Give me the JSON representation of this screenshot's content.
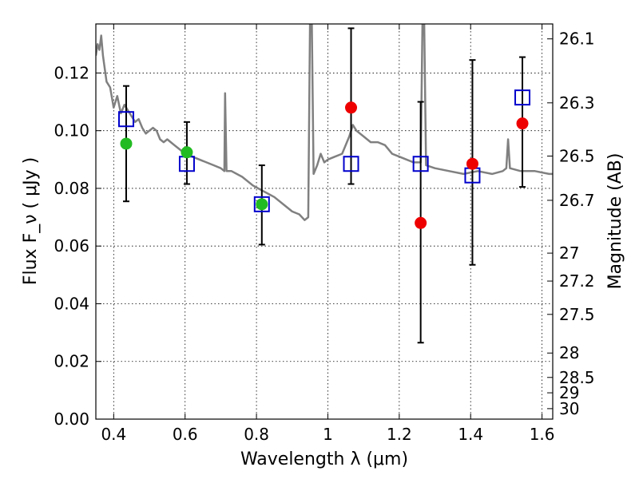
{
  "chart_data": {
    "type": "scatter",
    "xlabel": "Wavelength  λ (μm)",
    "ylabel": "Flux  F_ν  ( μJy )",
    "y2label": "Magnitude (AB)",
    "xlim": [
      0.35,
      1.63
    ],
    "ylim": [
      0.0,
      0.137
    ],
    "grid": true,
    "x_ticks": [
      0.4,
      0.6,
      0.8,
      1.0,
      1.2,
      1.4,
      1.6
    ],
    "x_tick_labels": [
      "0.4",
      "0.6",
      "0.8",
      "1",
      "1.2",
      "1.4",
      "1.6"
    ],
    "y_ticks": [
      0.0,
      0.02,
      0.04,
      0.06,
      0.08,
      0.1,
      0.12
    ],
    "y_tick_labels": [
      "0.00",
      "0.02",
      "0.04",
      "0.06",
      "0.08",
      "0.10",
      "0.12"
    ],
    "mag_ticks": [
      {
        "mag": 26.1,
        "label": "26.1"
      },
      {
        "mag": 26.3,
        "label": "26.3"
      },
      {
        "mag": 26.5,
        "label": "26.5"
      },
      {
        "mag": 26.7,
        "label": "26.7"
      },
      {
        "mag": 27.0,
        "label": "27"
      },
      {
        "mag": 27.2,
        "label": "27.2"
      },
      {
        "mag": 27.5,
        "label": "27.5"
      },
      {
        "mag": 28.0,
        "label": "28"
      },
      {
        "mag": 28.5,
        "label": "28.5"
      },
      {
        "mag": 29.0,
        "label": "29"
      },
      {
        "mag": 30.0,
        "label": "30"
      }
    ],
    "colors": {
      "spectrum": "#808080",
      "model_box": "#0000cc",
      "green_point": "#22bb22",
      "red_point": "#ee0000",
      "errorbar": "#000000"
    },
    "spectrum": [
      [
        0.35,
        0.126
      ],
      [
        0.355,
        0.13
      ],
      [
        0.36,
        0.128
      ],
      [
        0.365,
        0.133
      ],
      [
        0.37,
        0.126
      ],
      [
        0.38,
        0.117
      ],
      [
        0.39,
        0.115
      ],
      [
        0.4,
        0.108
      ],
      [
        0.41,
        0.112
      ],
      [
        0.42,
        0.106
      ],
      [
        0.43,
        0.109
      ],
      [
        0.44,
        0.107
      ],
      [
        0.45,
        0.105
      ],
      [
        0.46,
        0.103
      ],
      [
        0.47,
        0.104
      ],
      [
        0.48,
        0.101
      ],
      [
        0.49,
        0.099
      ],
      [
        0.5,
        0.1
      ],
      [
        0.51,
        0.101
      ],
      [
        0.52,
        0.1
      ],
      [
        0.53,
        0.097
      ],
      [
        0.54,
        0.096
      ],
      [
        0.55,
        0.097
      ],
      [
        0.56,
        0.096
      ],
      [
        0.57,
        0.095
      ],
      [
        0.58,
        0.094
      ],
      [
        0.59,
        0.093
      ],
      [
        0.6,
        0.093
      ],
      [
        0.62,
        0.091
      ],
      [
        0.64,
        0.09
      ],
      [
        0.66,
        0.089
      ],
      [
        0.68,
        0.088
      ],
      [
        0.7,
        0.087
      ],
      [
        0.71,
        0.086
      ],
      [
        0.712,
        0.113
      ],
      [
        0.716,
        0.086
      ],
      [
        0.73,
        0.086
      ],
      [
        0.76,
        0.084
      ],
      [
        0.79,
        0.081
      ],
      [
        0.82,
        0.079
      ],
      [
        0.85,
        0.077
      ],
      [
        0.88,
        0.074
      ],
      [
        0.9,
        0.072
      ],
      [
        0.92,
        0.071
      ],
      [
        0.935,
        0.069
      ],
      [
        0.945,
        0.07
      ],
      [
        0.95,
        0.137
      ],
      [
        0.955,
        0.137
      ],
      [
        0.96,
        0.085
      ],
      [
        0.97,
        0.088
      ],
      [
        0.98,
        0.092
      ],
      [
        0.99,
        0.089
      ],
      [
        1.0,
        0.09
      ],
      [
        1.02,
        0.091
      ],
      [
        1.04,
        0.092
      ],
      [
        1.06,
        0.098
      ],
      [
        1.07,
        0.102
      ],
      [
        1.08,
        0.1
      ],
      [
        1.1,
        0.098
      ],
      [
        1.12,
        0.096
      ],
      [
        1.14,
        0.096
      ],
      [
        1.16,
        0.095
      ],
      [
        1.18,
        0.092
      ],
      [
        1.2,
        0.091
      ],
      [
        1.22,
        0.09
      ],
      [
        1.24,
        0.089
      ],
      [
        1.26,
        0.089
      ],
      [
        1.265,
        0.137
      ],
      [
        1.27,
        0.137
      ],
      [
        1.275,
        0.088
      ],
      [
        1.3,
        0.087
      ],
      [
        1.34,
        0.086
      ],
      [
        1.38,
        0.085
      ],
      [
        1.42,
        0.086
      ],
      [
        1.46,
        0.085
      ],
      [
        1.49,
        0.086
      ],
      [
        1.5,
        0.087
      ],
      [
        1.505,
        0.097
      ],
      [
        1.51,
        0.087
      ],
      [
        1.54,
        0.086
      ],
      [
        1.58,
        0.086
      ],
      [
        1.62,
        0.085
      ],
      [
        1.63,
        0.085
      ]
    ],
    "model_points": [
      {
        "x": 0.435,
        "y": 0.104
      },
      {
        "x": 0.605,
        "y": 0.0885
      },
      {
        "x": 0.815,
        "y": 0.0745
      },
      {
        "x": 1.065,
        "y": 0.0885
      },
      {
        "x": 1.26,
        "y": 0.0885
      },
      {
        "x": 1.405,
        "y": 0.0845
      },
      {
        "x": 1.545,
        "y": 0.1115
      }
    ],
    "observed_points": [
      {
        "x": 0.435,
        "y": 0.0955,
        "yerr_low": 0.0755,
        "yerr_high": 0.1155,
        "color": "green"
      },
      {
        "x": 0.605,
        "y": 0.0925,
        "yerr_low": 0.0815,
        "yerr_high": 0.103,
        "color": "green"
      },
      {
        "x": 0.815,
        "y": 0.0745,
        "yerr_low": 0.0605,
        "yerr_high": 0.088,
        "color": "green"
      },
      {
        "x": 1.065,
        "y": 0.108,
        "yerr_low": 0.0815,
        "yerr_high": 0.1355,
        "color": "red"
      },
      {
        "x": 1.26,
        "y": 0.068,
        "yerr_low": 0.0265,
        "yerr_high": 0.11,
        "color": "red"
      },
      {
        "x": 1.405,
        "y": 0.0885,
        "yerr_low": 0.0535,
        "yerr_high": 0.1245,
        "color": "red"
      },
      {
        "x": 1.545,
        "y": 0.1025,
        "yerr_low": 0.0805,
        "yerr_high": 0.1255,
        "color": "red"
      }
    ]
  }
}
